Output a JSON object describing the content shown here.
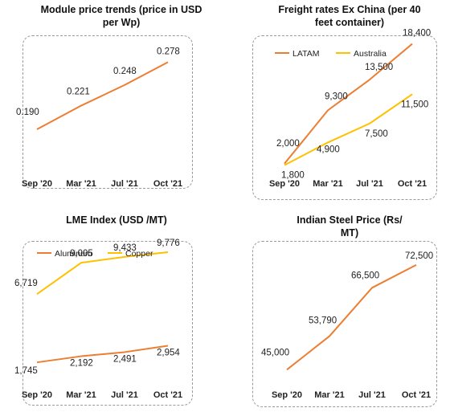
{
  "chart_data": [
    {
      "type": "line",
      "title": "Module price trends (price in USD per Wp)",
      "categories": [
        "Sep '20",
        "Mar '21",
        "Jul '21",
        "Oct '21"
      ],
      "series": [
        {
          "values": [
            0.19,
            0.221,
            0.248,
            0.278
          ],
          "labels": [
            "0.190",
            "0.221",
            "0.248",
            "0.278"
          ],
          "color": "#ED7D31"
        }
      ],
      "ylim": [
        0.17,
        0.29
      ]
    },
    {
      "type": "line",
      "title": "Freight rates Ex China (per 40 feet container)",
      "categories": [
        "Sep '20",
        "Mar '21",
        "Jul '21",
        "Oct '21"
      ],
      "legend": "top-left",
      "series": [
        {
          "name": "LATAM",
          "values": [
            2000,
            9300,
            13500,
            18400
          ],
          "labels": [
            "2,000",
            "9,300",
            "13,500",
            "18,400"
          ],
          "color": "#ED7D31"
        },
        {
          "name": "Australia",
          "values": [
            1800,
            4900,
            7500,
            11500
          ],
          "labels": [
            "1,800",
            "4,900",
            "7,500",
            "11,500"
          ],
          "color": "#FFC000"
        }
      ],
      "ylim": [
        0,
        20000
      ]
    },
    {
      "type": "line",
      "title": "LME Index (USD /MT)",
      "categories": [
        "Sep '20",
        "Mar '21",
        "Jul '21",
        "Oct '21"
      ],
      "legend": "top-left",
      "series": [
        {
          "name": "Aluminum",
          "values": [
            1745,
            2192,
            2491,
            2954
          ],
          "labels": [
            "1,745",
            "2,192",
            "2,491",
            "2,954"
          ],
          "color": "#ED7D31"
        },
        {
          "name": "Copper",
          "values": [
            6719,
            9005,
            9433,
            9776
          ],
          "labels": [
            "6,719",
            "9,005",
            "9,433",
            "9,776"
          ],
          "color": "#FFC000"
        }
      ],
      "ylim": [
        0,
        12000
      ]
    },
    {
      "type": "line",
      "title": "Indian Steel Price (Rs/ MT)",
      "categories": [
        "Sep '20",
        "Mar '21",
        "Jul '21",
        "Oct '21"
      ],
      "series": [
        {
          "values": [
            45000,
            53790,
            66500,
            72500
          ],
          "labels": [
            "45,000",
            "53,790",
            "66,500",
            "72,500"
          ],
          "color": "#ED7D31"
        }
      ],
      "ylim": [
        40000,
        75000
      ]
    }
  ]
}
